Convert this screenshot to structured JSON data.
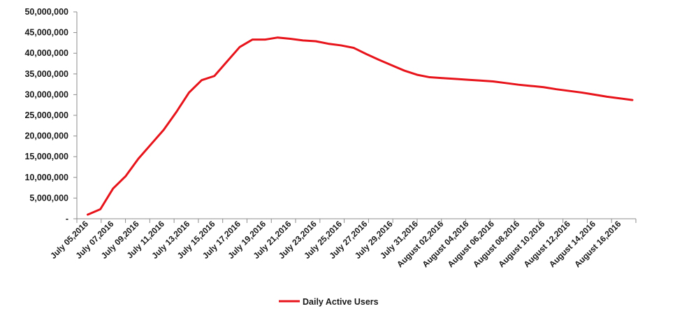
{
  "chart_data": {
    "type": "line",
    "title": "",
    "xlabel": "",
    "ylabel": "",
    "ylim": [
      0,
      50000000
    ],
    "y_ticks": [
      "-",
      "5,000,000",
      "10,000,000",
      "15,000,000",
      "20,000,000",
      "25,000,000",
      "30,000,000",
      "35,000,000",
      "40,000,000",
      "45,000,000",
      "50,000,000"
    ],
    "x_tick_labels": [
      "July 05,2016",
      "July 07,2016",
      "July 09,2016",
      "July 11,2016",
      "July 13,2016",
      "July 15,2016",
      "July 17,2016",
      "July 19,2016",
      "July 21,2016",
      "July 23,2016",
      "July 25,2016",
      "July 27,2016",
      "July 29,2016",
      "July 31,2016",
      "August 02,2016",
      "August 04,2016",
      "August 06,2016",
      "August 08,2016",
      "August 10,2016",
      "August 12,2016",
      "August 14,2016",
      "August 16,2016"
    ],
    "grid": false,
    "legend": "bottom",
    "series": [
      {
        "name": "Daily Active Users",
        "color": "#e8141b",
        "x": [
          "2016-07-05",
          "2016-07-06",
          "2016-07-07",
          "2016-07-08",
          "2016-07-09",
          "2016-07-10",
          "2016-07-11",
          "2016-07-12",
          "2016-07-13",
          "2016-07-14",
          "2016-07-15",
          "2016-07-16",
          "2016-07-17",
          "2016-07-18",
          "2016-07-19",
          "2016-07-20",
          "2016-07-21",
          "2016-07-22",
          "2016-07-23",
          "2016-07-24",
          "2016-07-25",
          "2016-07-26",
          "2016-07-27",
          "2016-07-28",
          "2016-07-29",
          "2016-07-30",
          "2016-07-31",
          "2016-08-01",
          "2016-08-02",
          "2016-08-03",
          "2016-08-04",
          "2016-08-05",
          "2016-08-06",
          "2016-08-07",
          "2016-08-08",
          "2016-08-09",
          "2016-08-10",
          "2016-08-11",
          "2016-08-12",
          "2016-08-13",
          "2016-08-14",
          "2016-08-15",
          "2016-08-16",
          "2016-08-17"
        ],
        "values": [
          1000000,
          2300000,
          7300000,
          10300000,
          14500000,
          18000000,
          21500000,
          25800000,
          30500000,
          33500000,
          34500000,
          38000000,
          41500000,
          43300000,
          43300000,
          43800000,
          43500000,
          43100000,
          42900000,
          42300000,
          41900000,
          41300000,
          39800000,
          38400000,
          37100000,
          35800000,
          34800000,
          34200000,
          34000000,
          33800000,
          33600000,
          33400000,
          33200000,
          32800000,
          32400000,
          32100000,
          31800000,
          31300000,
          30900000,
          30500000,
          30000000,
          29500000,
          29100000,
          28700000
        ]
      }
    ]
  }
}
